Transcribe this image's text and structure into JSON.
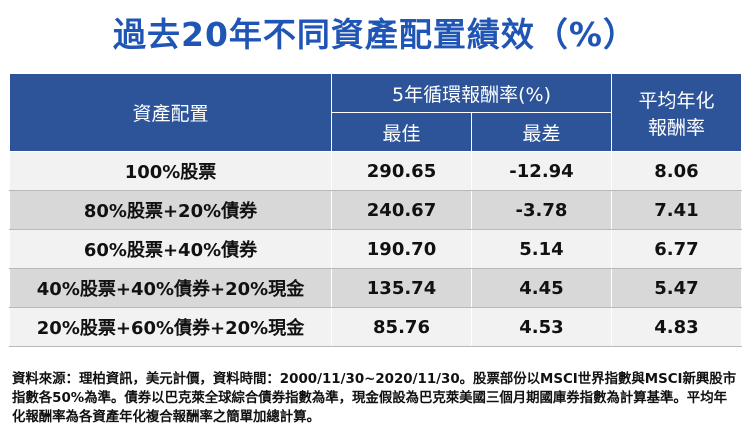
{
  "title": "過去20年不同資產配置績效（%）",
  "chart_data": {
    "type": "table",
    "header": {
      "allocation": "資產配置",
      "rolling_group": "5年循環報酬率(%)",
      "best": "最佳",
      "worst": "最差",
      "avg_line1": "平均年化",
      "avg_line2": "報酬率"
    },
    "rows": [
      {
        "allocation": "100%股票",
        "best": "290.65",
        "worst": "-12.94",
        "avg": "8.06"
      },
      {
        "allocation": "80%股票+20%債券",
        "best": "240.67",
        "worst": "-3.78",
        "avg": "7.41"
      },
      {
        "allocation": "60%股票+40%債券",
        "best": "190.70",
        "worst": "5.14",
        "avg": "6.77"
      },
      {
        "allocation": "40%股票+40%債券+20%現金",
        "best": "135.74",
        "worst": "4.45",
        "avg": "5.47"
      },
      {
        "allocation": "20%股票+60%債券+20%現金",
        "best": "85.76",
        "worst": "4.53",
        "avg": "4.83"
      }
    ]
  },
  "footnote": "資料來源：理柏資訊，美元計價，資料時間：2000/11/30~2020/11/30。股票部份以MSCI世界指數與MSCI新興股市指數各50%為準。債券以巴克萊全球綜合債券指數為準，現金假設為巴克萊美國三個月期國庫券指數為計算基準。平均年化報酬率為各資產年化複合報酬率之簡單加總計算。",
  "colors": {
    "title": "#1f55b5",
    "header_bg": "#2d5399",
    "row_light": "#f2f2f2",
    "row_dark": "#d8d8d8"
  }
}
